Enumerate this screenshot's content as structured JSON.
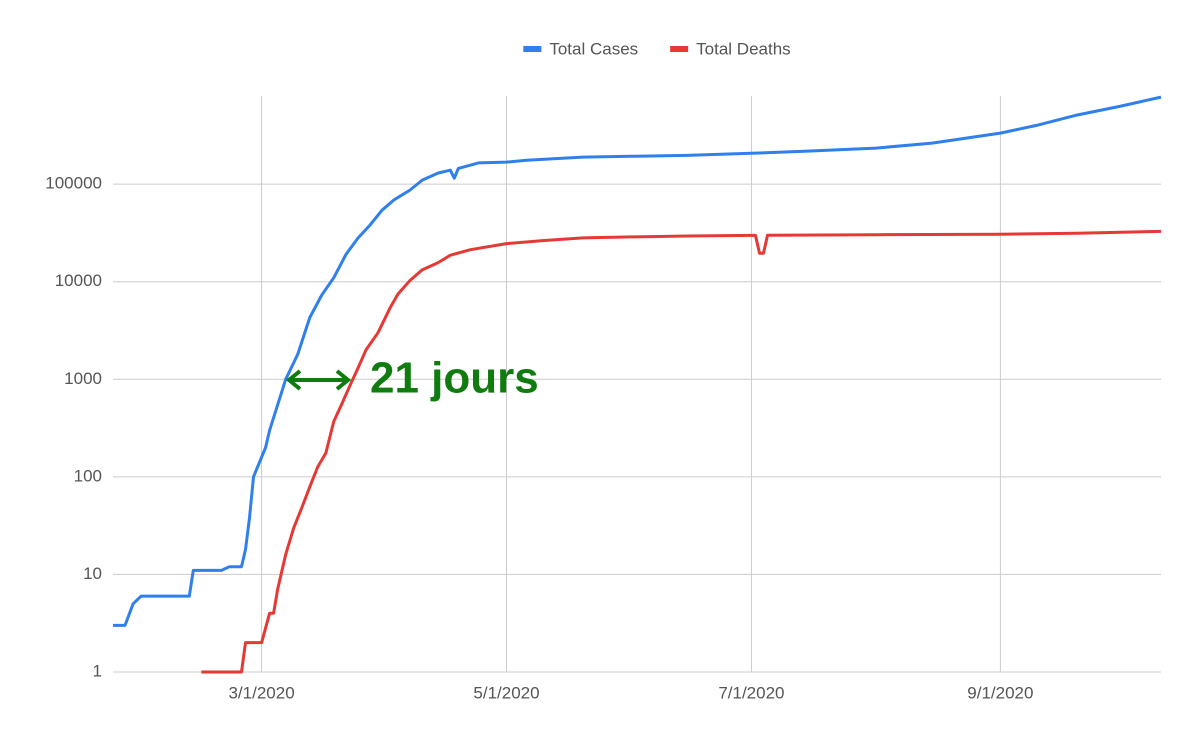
{
  "chart_data": {
    "type": "line",
    "series": [
      {
        "name": "Total Cases",
        "color": "#2f80ed",
        "x": [
          "1/24/2020",
          "1/27/2020",
          "1/29/2020",
          "1/31/2020",
          "2/12/2020",
          "2/13/2020",
          "2/20/2020",
          "2/22/2020",
          "2/25/2020",
          "2/26/2020",
          "2/27/2020",
          "2/28/2020",
          "3/2/2020",
          "3/3/2020",
          "3/7/2020",
          "3/10/2020",
          "3/13/2020",
          "3/16/2020",
          "3/19/2020",
          "3/22/2020",
          "3/25/2020",
          "3/28/2020",
          "3/31/2020",
          "4/3/2020",
          "4/7/2020",
          "4/10/2020",
          "4/14/2020",
          "4/17/2020",
          "4/18/2020",
          "4/19/2020",
          "4/24/2020",
          "5/1/2020",
          "5/6/2020",
          "5/20/2020",
          "6/1/2020",
          "6/15/2020",
          "7/1/2020",
          "7/15/2020",
          "8/1/2020",
          "8/15/2020",
          "9/1/2020",
          "9/10/2020",
          "9/20/2020",
          "10/1/2020",
          "10/11/2020"
        ],
        "values": [
          3,
          3,
          5,
          6,
          6,
          11,
          11,
          12,
          12,
          18,
          38,
          100,
          200,
          300,
          1000,
          1800,
          4300,
          7300,
          11000,
          19000,
          28000,
          38000,
          54000,
          69000,
          87000,
          110000,
          130000,
          139000,
          115000,
          145000,
          165000,
          168000,
          176000,
          189000,
          193000,
          197000,
          207000,
          218000,
          234000,
          263000,
          333000,
          400000,
          510000,
          630000,
          780000
        ]
      },
      {
        "name": "Total Deaths",
        "color": "#e53935",
        "x": [
          "2/15/2020",
          "2/25/2020",
          "2/26/2020",
          "3/1/2020",
          "3/3/2020",
          "3/4/2020",
          "3/5/2020",
          "3/7/2020",
          "3/9/2020",
          "3/11/2020",
          "3/13/2020",
          "3/15/2020",
          "3/17/2020",
          "3/19/2020",
          "3/21/2020",
          "3/23/2020",
          "3/25/2020",
          "3/27/2020",
          "3/30/2020",
          "4/2/2020",
          "4/4/2020",
          "4/7/2020",
          "4/10/2020",
          "4/14/2020",
          "4/17/2020",
          "4/22/2020",
          "5/1/2020",
          "5/10/2020",
          "5/20/2020",
          "6/1/2020",
          "6/15/2020",
          "7/1/2020",
          "7/2/2020",
          "7/3/2020",
          "7/4/2020",
          "7/5/2020",
          "8/1/2020",
          "9/1/2020",
          "9/20/2020",
          "10/11/2020"
        ],
        "values": [
          1,
          1,
          2,
          2,
          4,
          4,
          7,
          16,
          30,
          48,
          79,
          127,
          175,
          370,
          560,
          860,
          1300,
          2000,
          3000,
          5400,
          7500,
          10300,
          13200,
          15700,
          18700,
          21300,
          24600,
          26400,
          28100,
          28800,
          29400,
          29800,
          29800,
          19600,
          19600,
          29900,
          30300,
          30700,
          31300,
          32800
        ]
      }
    ],
    "xlim": [
      "1/24/2020",
      "10/11/2020"
    ],
    "xticks": [
      "3/1/2020",
      "5/1/2020",
      "7/1/2020",
      "9/1/2020"
    ],
    "ylim": [
      1,
      800000
    ],
    "log_y": true,
    "yticks": [
      1,
      10,
      100,
      1000,
      10000,
      100000
    ],
    "grid": true,
    "legend": "top",
    "annotations": [
      {
        "text": "21 jours",
        "color": "#107c10"
      }
    ]
  }
}
